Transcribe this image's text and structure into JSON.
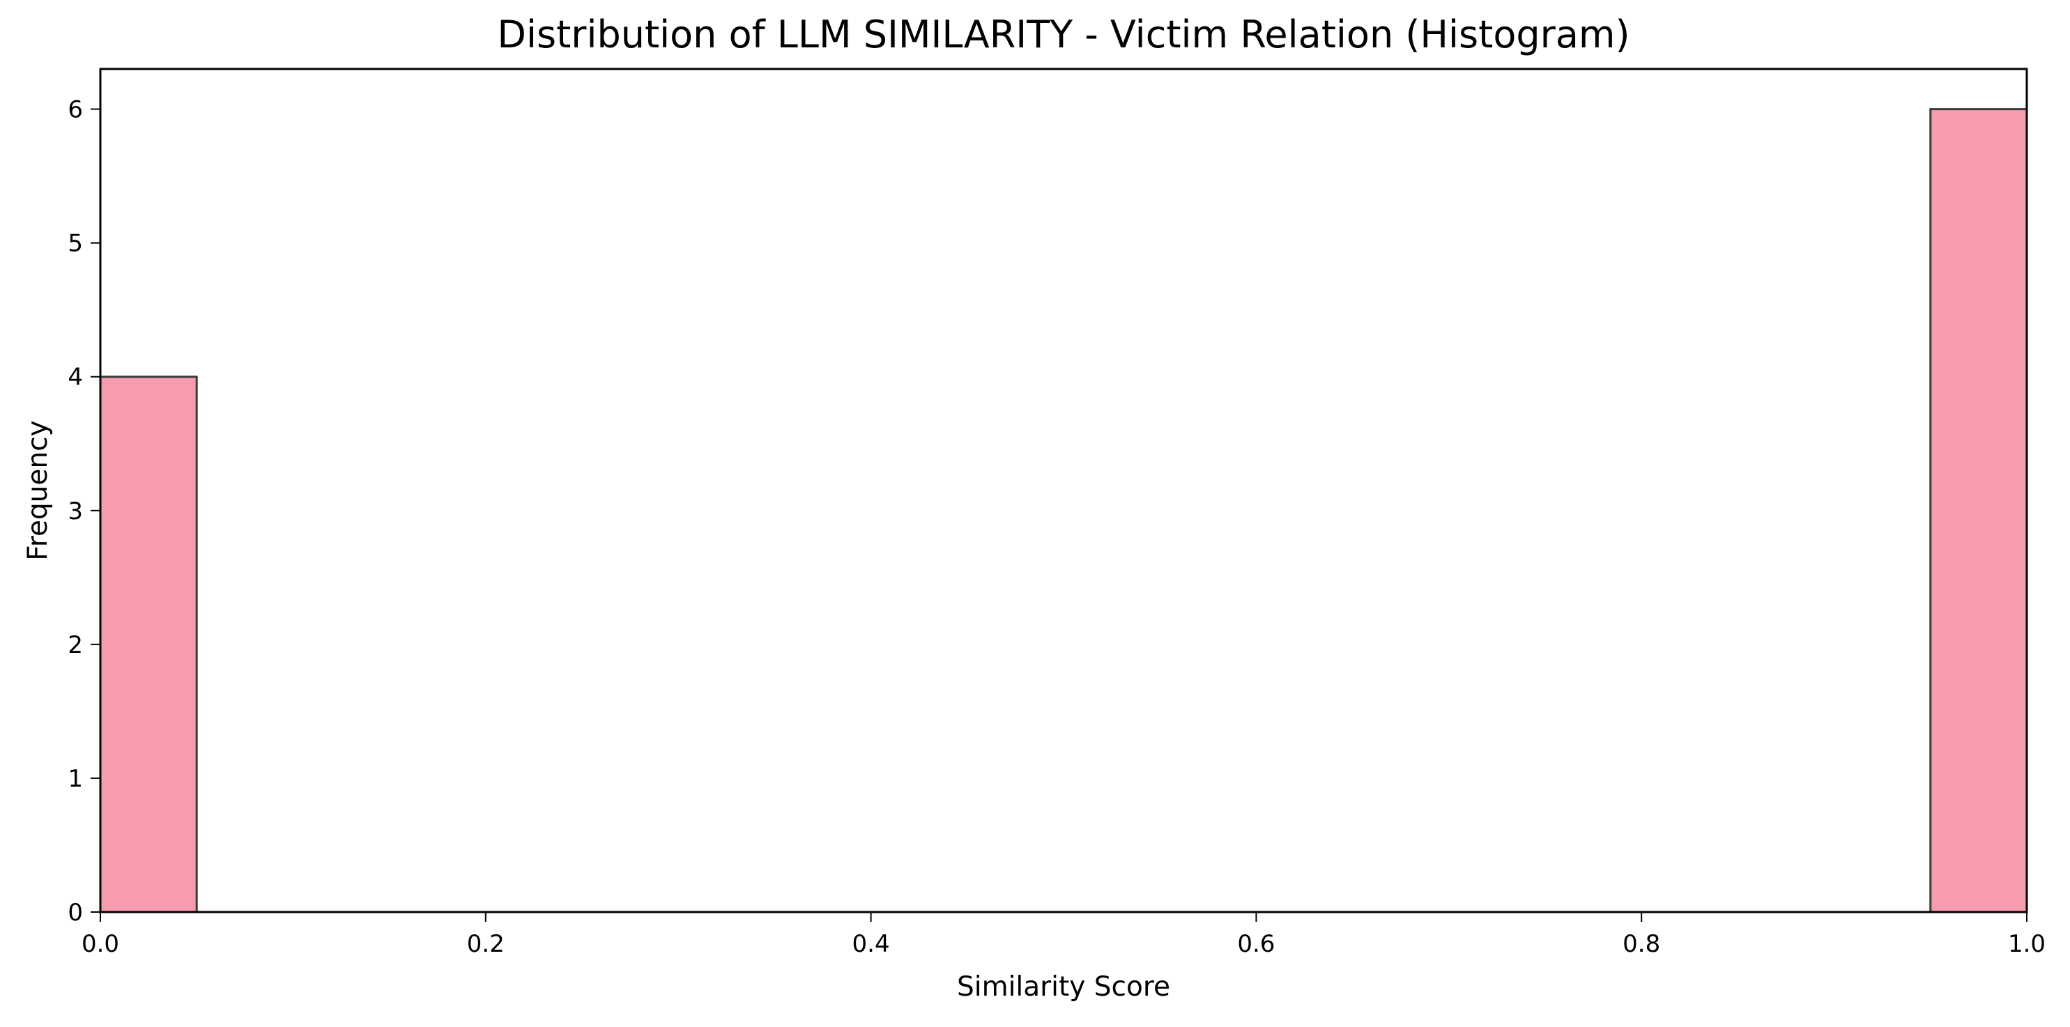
{
  "chart_data": {
    "type": "bar",
    "title": "Distribution of LLM SIMILARITY - Victim Relation (Histogram)",
    "xlabel": "Similarity Score",
    "ylabel": "Frequency",
    "xlim": [
      0.0,
      1.0
    ],
    "ylim": [
      0,
      6.3
    ],
    "grid": false,
    "bin_width": 0.05,
    "bins": [
      {
        "start": 0.0,
        "end": 0.05,
        "value": 4
      },
      {
        "start": 0.95,
        "end": 1.0,
        "value": 6
      }
    ],
    "x_ticks": [
      {
        "value": 0.0,
        "label": "0.0"
      },
      {
        "value": 0.2,
        "label": "0.2"
      },
      {
        "value": 0.4,
        "label": "0.4"
      },
      {
        "value": 0.6,
        "label": "0.6"
      },
      {
        "value": 0.8,
        "label": "0.8"
      },
      {
        "value": 1.0,
        "label": "1.0"
      }
    ],
    "y_ticks": [
      {
        "value": 0,
        "label": "0"
      },
      {
        "value": 1,
        "label": "1"
      },
      {
        "value": 2,
        "label": "2"
      },
      {
        "value": 3,
        "label": "3"
      },
      {
        "value": 4,
        "label": "4"
      },
      {
        "value": 5,
        "label": "5"
      },
      {
        "value": 6,
        "label": "6"
      }
    ],
    "colors": {
      "bar_fill": "#f79bae",
      "bar_edge": "#3a3a3a",
      "axis": "#000000"
    }
  }
}
